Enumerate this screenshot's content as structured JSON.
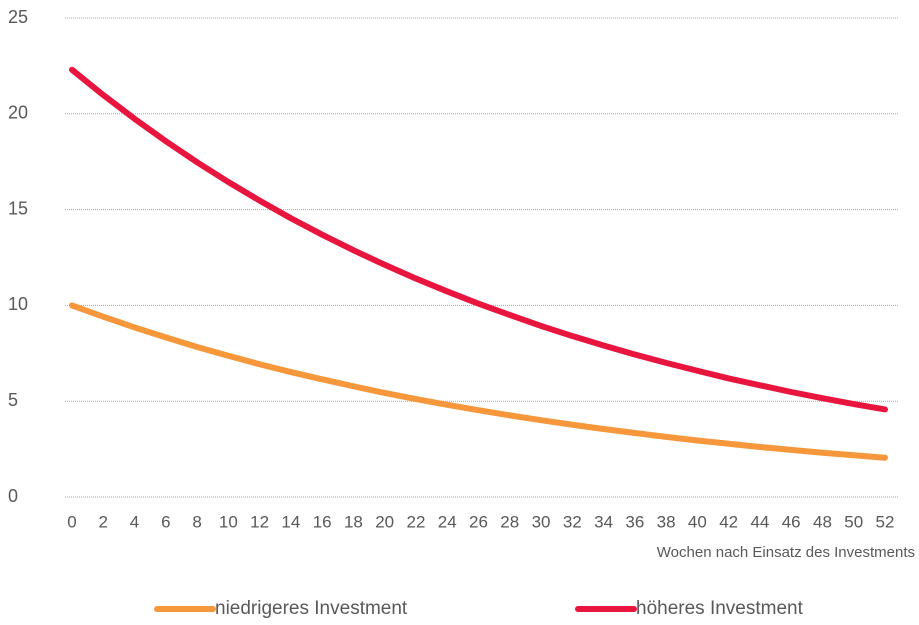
{
  "chart_data": {
    "type": "line",
    "x": [
      0,
      2,
      4,
      6,
      8,
      10,
      12,
      14,
      16,
      18,
      20,
      22,
      24,
      26,
      28,
      30,
      32,
      34,
      36,
      38,
      40,
      42,
      44,
      46,
      48,
      50,
      52
    ],
    "series": [
      {
        "name": "niedrigeres Investment",
        "color": "#f5973a",
        "values": [
          10.0,
          9.41,
          8.85,
          8.33,
          7.83,
          7.37,
          6.93,
          6.52,
          6.14,
          5.78,
          5.43,
          5.11,
          4.81,
          4.53,
          4.26,
          4.01,
          3.77,
          3.55,
          3.34,
          3.14,
          2.95,
          2.78,
          2.61,
          2.46,
          2.31,
          2.18,
          2.05
        ]
      },
      {
        "name": "höheres Investment",
        "color": "#e8163f",
        "values": [
          22.3,
          20.98,
          19.74,
          18.57,
          17.47,
          16.44,
          15.47,
          14.55,
          13.69,
          12.88,
          12.12,
          11.4,
          10.73,
          10.09,
          9.5,
          8.93,
          8.4,
          7.91,
          7.44,
          7.0,
          6.59,
          6.19,
          5.83,
          5.48,
          5.16,
          4.85,
          4.57
        ]
      }
    ],
    "x_label": "Wochen nach Einsatz des Investments",
    "xlim": [
      0,
      52
    ],
    "xticks": [
      0,
      2,
      4,
      6,
      8,
      10,
      12,
      14,
      16,
      18,
      20,
      22,
      24,
      26,
      28,
      30,
      32,
      34,
      36,
      38,
      40,
      42,
      44,
      46,
      48,
      50,
      52
    ],
    "ylim": [
      0,
      25
    ],
    "yticks": [
      0,
      5,
      10,
      15,
      20,
      25
    ],
    "grid": true,
    "legend": "bottom"
  }
}
